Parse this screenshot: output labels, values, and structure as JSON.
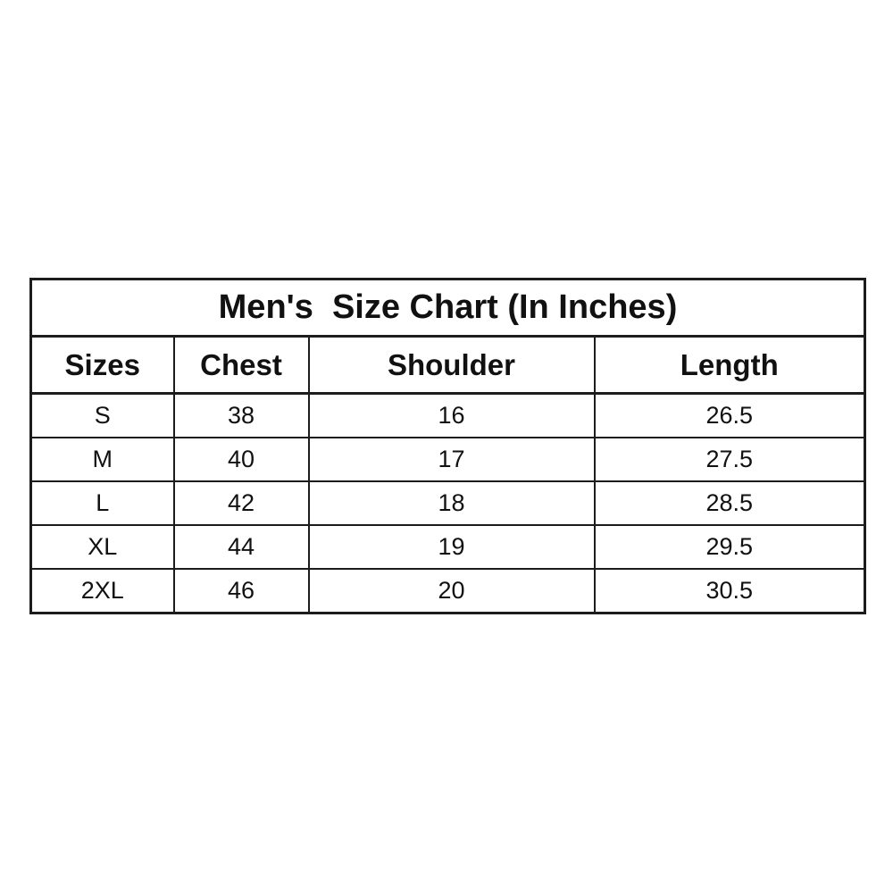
{
  "chart_data": {
    "type": "table",
    "title": "Men's  Size Chart (In Inches)",
    "columns": [
      "Sizes",
      "Chest",
      "Shoulder",
      "Length"
    ],
    "rows": [
      [
        "S",
        "38",
        "16",
        "26.5"
      ],
      [
        "M",
        "40",
        "17",
        "27.5"
      ],
      [
        "L",
        "42",
        "18",
        "28.5"
      ],
      [
        "XL",
        "44",
        "19",
        "29.5"
      ],
      [
        "2XL",
        "46",
        "20",
        "30.5"
      ]
    ],
    "units": "inches",
    "layout_hints": {
      "title_position": "top-merged-row",
      "alignment": "center",
      "grid": "on"
    }
  },
  "colors": {
    "background": "#ffffff",
    "border": "#1c1c1c",
    "text": "#111111"
  }
}
